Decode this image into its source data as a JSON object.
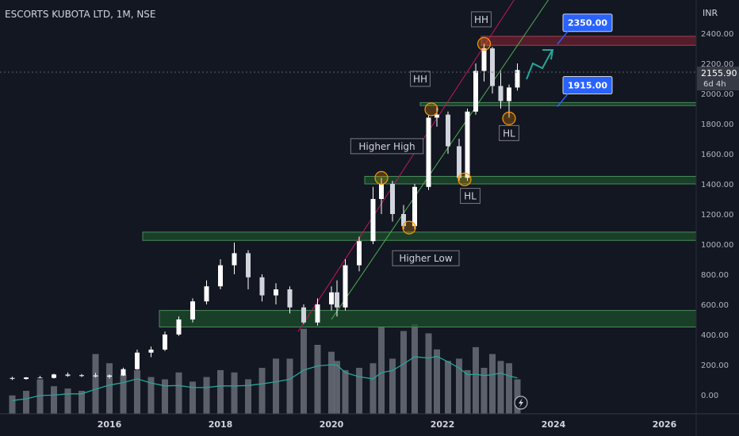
{
  "header": {
    "title": "ESCORTS KUBOTA LTD, 1M, NSE",
    "currency": "INR"
  },
  "price_badge": {
    "price": "2155.90",
    "countdown": "6d 4h"
  },
  "colors": {
    "background": "#131722",
    "candle": "#ffffff",
    "volume": "#b2b5be",
    "volume_ma": "#26a69a",
    "zone_green": "#1e4d2b",
    "zone_red": "#6b2030",
    "callout": "#2962ff",
    "channel_upper": "#c2185b",
    "channel_lower": "#4caf50",
    "arrow": "#26a69a"
  },
  "chart_data": {
    "type": "candlestick",
    "ylim": [
      -100,
      2520
    ],
    "yticks": [
      "2400.00",
      "2200.00",
      "2000.00",
      "1800.00",
      "1600.00",
      "1400.00",
      "1200.00",
      "1000.00",
      "800.00",
      "600.00",
      "400.00",
      "200.00",
      "0.00"
    ],
    "xticks": [
      "2016",
      "2018",
      "2020",
      "2022",
      "2024",
      "2026"
    ],
    "xlim": [
      2014.2,
      2027.3
    ],
    "series_ohlc": [
      [
        2014.25,
        112,
        120,
        98,
        105
      ],
      [
        2014.5,
        105,
        118,
        100,
        115
      ],
      [
        2014.75,
        115,
        125,
        110,
        112
      ],
      [
        2015.0,
        112,
        140,
        108,
        135
      ],
      [
        2015.25,
        135,
        148,
        120,
        125
      ],
      [
        2015.5,
        125,
        138,
        118,
        130
      ],
      [
        2015.75,
        130,
        145,
        115,
        120
      ],
      [
        2016.0,
        120,
        135,
        108,
        128
      ],
      [
        2016.25,
        128,
        180,
        125,
        170
      ],
      [
        2016.5,
        170,
        300,
        165,
        280
      ],
      [
        2016.75,
        280,
        320,
        250,
        300
      ],
      [
        2017.0,
        300,
        420,
        290,
        400
      ],
      [
        2017.25,
        400,
        520,
        390,
        500
      ],
      [
        2017.5,
        500,
        640,
        480,
        620
      ],
      [
        2017.75,
        620,
        760,
        600,
        720
      ],
      [
        2018.0,
        720,
        900,
        700,
        860
      ],
      [
        2018.25,
        860,
        1010,
        800,
        940
      ],
      [
        2018.5,
        940,
        960,
        700,
        780
      ],
      [
        2018.75,
        780,
        800,
        620,
        660
      ],
      [
        2019.0,
        660,
        740,
        600,
        700
      ],
      [
        2019.25,
        700,
        720,
        540,
        580
      ],
      [
        2019.5,
        580,
        600,
        470,
        480
      ],
      [
        2019.75,
        480,
        640,
        460,
        600
      ],
      [
        2020.0,
        600,
        720,
        560,
        680
      ],
      [
        2020.1,
        680,
        760,
        520,
        580
      ],
      [
        2020.25,
        580,
        900,
        560,
        860
      ],
      [
        2020.5,
        860,
        1050,
        820,
        1020
      ],
      [
        2020.75,
        1020,
        1380,
        1000,
        1300
      ],
      [
        2020.9,
        1300,
        1440,
        1200,
        1400
      ],
      [
        2021.1,
        1400,
        1420,
        1150,
        1200
      ],
      [
        2021.3,
        1200,
        1260,
        1100,
        1120
      ],
      [
        2021.5,
        1120,
        1400,
        1100,
        1380
      ],
      [
        2021.75,
        1380,
        1860,
        1360,
        1840
      ],
      [
        2021.9,
        1840,
        1910,
        1780,
        1860
      ],
      [
        2022.1,
        1860,
        1880,
        1600,
        1650
      ],
      [
        2022.3,
        1650,
        1700,
        1420,
        1440
      ],
      [
        2022.45,
        1440,
        1900,
        1420,
        1880
      ],
      [
        2022.6,
        1880,
        2200,
        1860,
        2150
      ],
      [
        2022.75,
        2150,
        2330,
        2080,
        2300
      ],
      [
        2022.9,
        2300,
        2310,
        2000,
        2050
      ],
      [
        2023.05,
        2050,
        2150,
        1900,
        1950
      ],
      [
        2023.2,
        1950,
        2060,
        1840,
        2040
      ],
      [
        2023.35,
        2040,
        2200,
        2020,
        2156
      ]
    ],
    "volume": [
      40,
      50,
      75,
      60,
      55,
      50,
      130,
      110,
      85,
      95,
      80,
      75,
      90,
      70,
      80,
      95,
      90,
      75,
      100,
      120,
      120,
      185,
      150,
      135,
      115,
      95,
      100,
      110,
      190,
      120,
      180,
      195,
      175,
      140,
      115,
      120,
      95,
      145,
      100,
      130,
      115,
      110,
      75
    ],
    "zones": [
      {
        "type": "support",
        "low": 1025,
        "high": 1080,
        "x_start": 2016.6
      },
      {
        "type": "support",
        "low": 450,
        "high": 560,
        "x_start": 2016.9
      },
      {
        "type": "support",
        "low": 1400,
        "high": 1450,
        "x_start": 2020.6
      },
      {
        "type": "support",
        "low": 1920,
        "high": 1940,
        "x_start": 2021.6
      },
      {
        "type": "resistance",
        "low": 2320,
        "high": 2380,
        "x_start": 2022.7
      }
    ],
    "annotations": [
      {
        "text": "HH",
        "x": 2022.7,
        "y": 2490
      },
      {
        "text": "HH",
        "x": 2021.6,
        "y": 2095
      },
      {
        "text": "Higher High",
        "x": 2021.0,
        "y": 1648
      },
      {
        "text": "HL",
        "x": 2023.2,
        "y": 1735
      },
      {
        "text": "HL",
        "x": 2022.5,
        "y": 1318
      },
      {
        "text": "Higher Low",
        "x": 2021.7,
        "y": 904
      }
    ],
    "callouts": [
      {
        "text": "2350.00",
        "x": 2024.6,
        "y": 2470
      },
      {
        "text": "1915.00",
        "x": 2024.6,
        "y": 2055
      }
    ],
    "pivots": [
      {
        "x": 2022.75,
        "y": 2330
      },
      {
        "x": 2021.8,
        "y": 1895
      },
      {
        "x": 2020.9,
        "y": 1440
      },
      {
        "x": 2023.2,
        "y": 1835
      },
      {
        "x": 2022.4,
        "y": 1430
      },
      {
        "x": 2021.4,
        "y": 1110
      }
    ]
  }
}
